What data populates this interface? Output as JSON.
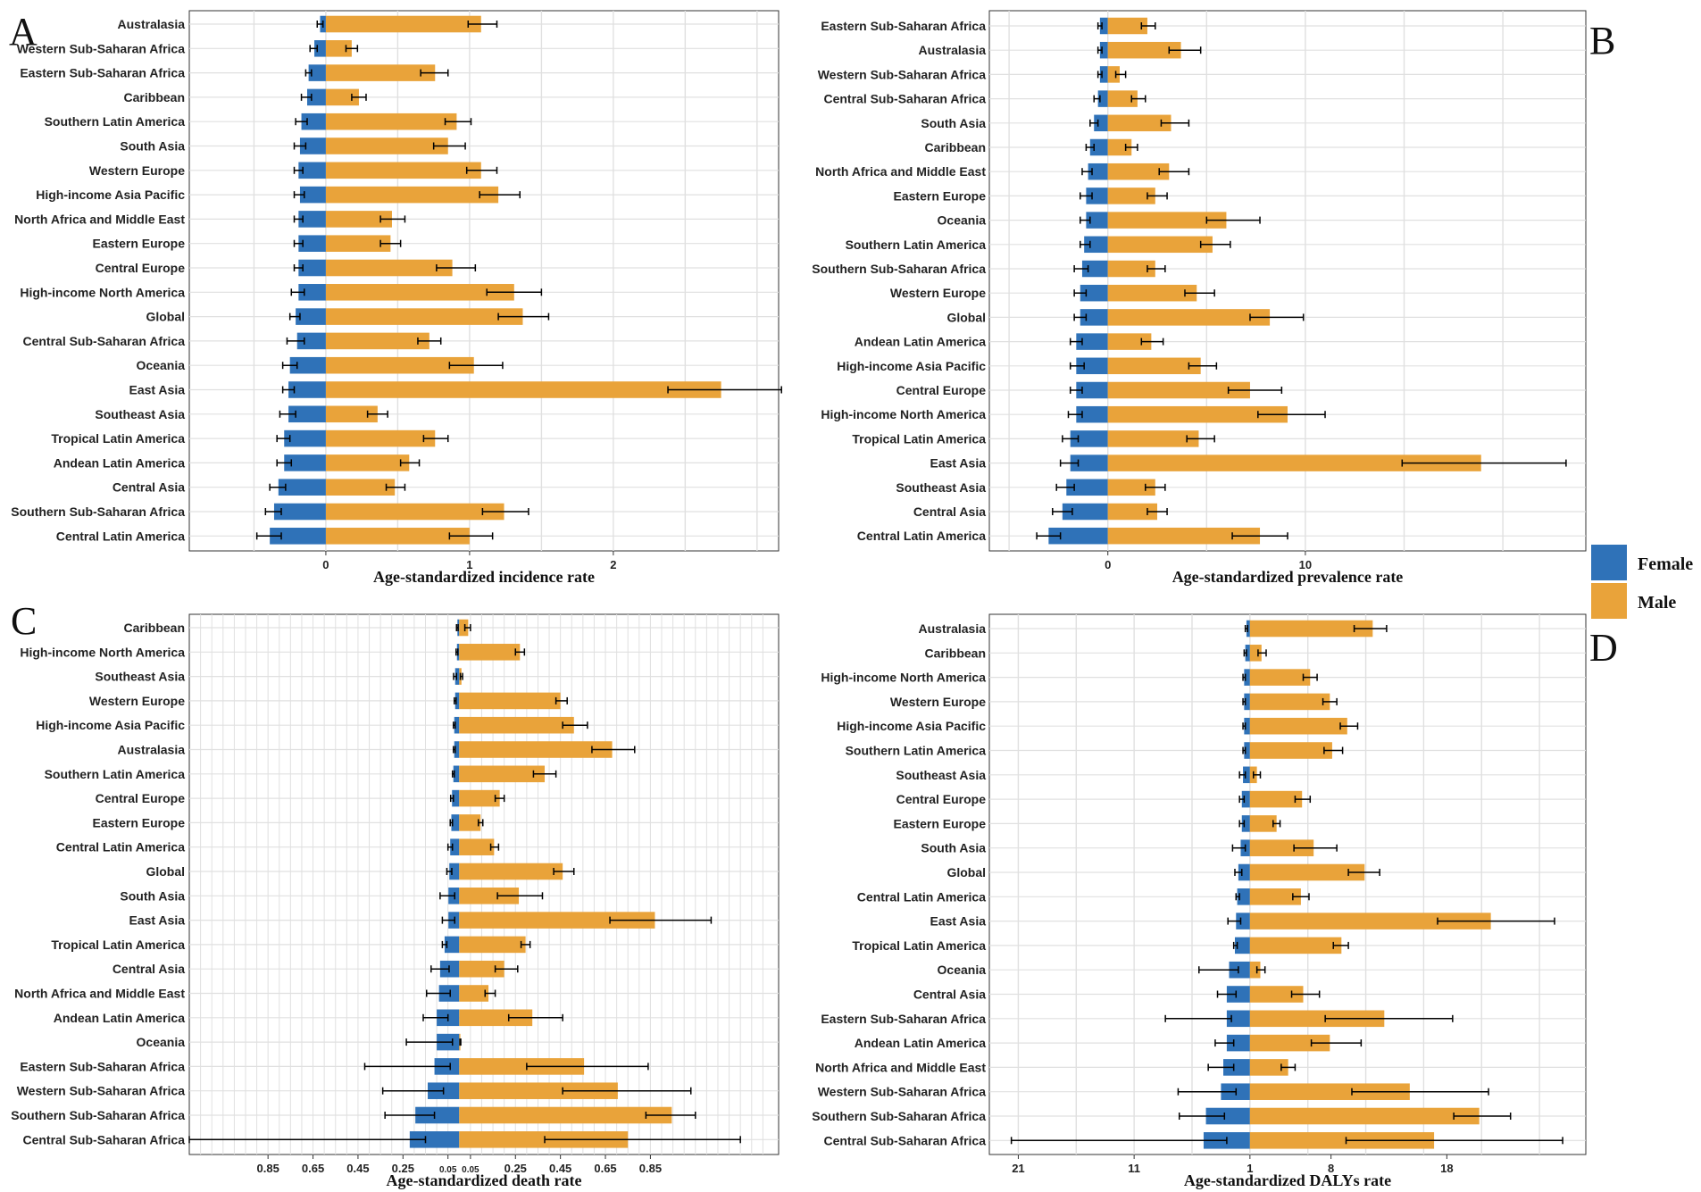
{
  "colors": {
    "female": "#2f72b8",
    "male": "#e9a33a",
    "grid": "#e0e0e0",
    "axis": "#333333"
  },
  "legend": {
    "female": "Female",
    "male": "Male"
  },
  "chart_data": [
    {
      "type": "bar",
      "panel": "A",
      "xlabel": "Age-standardized incidence rate",
      "tick_labels": [
        "0",
        "1",
        "2"
      ],
      "xlim": [
        -0.95,
        3.15
      ],
      "categories": [
        "Australasia",
        "Western Sub-Saharan Africa",
        "Eastern Sub-Saharan Africa",
        "Caribbean",
        "Southern Latin America",
        "South Asia",
        "Western Europe",
        "High-income Asia Pacific",
        "North Africa and Middle East",
        "Eastern Europe",
        "Central Europe",
        "High-income North America",
        "Global",
        "Central Sub-Saharan Africa",
        "Oceania",
        "East Asia",
        "Southeast Asia",
        "Tropical Latin America",
        "Andean Latin America",
        "Central Asia",
        "Southern Sub-Saharan Africa",
        "Central Latin America"
      ],
      "series": [
        {
          "name": "Female",
          "values": [
            0.04,
            0.08,
            0.12,
            0.13,
            0.17,
            0.18,
            0.19,
            0.18,
            0.19,
            0.19,
            0.19,
            0.19,
            0.21,
            0.2,
            0.25,
            0.26,
            0.26,
            0.29,
            0.29,
            0.33,
            0.36,
            0.39
          ],
          "err_low": [
            0.06,
            0.11,
            0.14,
            0.17,
            0.21,
            0.22,
            0.22,
            0.22,
            0.22,
            0.22,
            0.22,
            0.24,
            0.25,
            0.27,
            0.3,
            0.3,
            0.32,
            0.34,
            0.34,
            0.39,
            0.42,
            0.48
          ],
          "err_high": [
            0.02,
            0.06,
            0.1,
            0.1,
            0.13,
            0.14,
            0.16,
            0.15,
            0.16,
            0.16,
            0.16,
            0.15,
            0.18,
            0.15,
            0.2,
            0.22,
            0.21,
            0.25,
            0.24,
            0.28,
            0.31,
            0.31
          ]
        },
        {
          "name": "Male",
          "values": [
            1.08,
            0.18,
            0.76,
            0.23,
            0.91,
            0.85,
            1.08,
            1.2,
            0.46,
            0.45,
            0.88,
            1.31,
            1.37,
            0.72,
            1.03,
            2.75,
            0.36,
            0.76,
            0.58,
            0.48,
            1.24,
            1.0
          ],
          "err_low": [
            0.99,
            0.14,
            0.66,
            0.18,
            0.83,
            0.75,
            0.98,
            1.07,
            0.38,
            0.38,
            0.77,
            1.12,
            1.2,
            0.64,
            0.86,
            2.38,
            0.29,
            0.68,
            0.52,
            0.42,
            1.09,
            0.86
          ],
          "err_high": [
            1.19,
            0.22,
            0.85,
            0.28,
            1.01,
            0.97,
            1.19,
            1.35,
            0.55,
            0.52,
            1.04,
            1.5,
            1.55,
            0.8,
            1.23,
            3.17,
            0.43,
            0.85,
            0.65,
            0.55,
            1.41,
            1.16
          ]
        }
      ]
    },
    {
      "type": "bar",
      "panel": "B",
      "xlabel": "Age-standardized prevalence rate",
      "tick_labels": [
        "0",
        "10"
      ],
      "xlim": [
        -6,
        24.2
      ],
      "categories": [
        "Eastern Sub-Saharan Africa",
        "Australasia",
        "Western Sub-Saharan Africa",
        "Central Sub-Saharan Africa",
        "South Asia",
        "Caribbean",
        "North Africa and Middle East",
        "Eastern Europe",
        "Oceania",
        "Southern Latin America",
        "Southern Sub-Saharan Africa",
        "Western Europe",
        "Global",
        "Andean Latin America",
        "High-income Asia Pacific",
        "Central Europe",
        "High-income North America",
        "Tropical Latin America",
        "East Asia",
        "Southeast Asia",
        "Central Asia",
        "Central Latin America"
      ],
      "series": [
        {
          "name": "Female",
          "values": [
            0.4,
            0.4,
            0.4,
            0.5,
            0.7,
            0.9,
            1.0,
            1.1,
            1.1,
            1.2,
            1.3,
            1.4,
            1.4,
            1.6,
            1.6,
            1.6,
            1.6,
            1.9,
            1.9,
            2.1,
            2.3,
            3.0
          ],
          "err_low": [
            0.5,
            0.5,
            0.5,
            0.7,
            0.9,
            1.1,
            1.3,
            1.4,
            1.4,
            1.4,
            1.7,
            1.7,
            1.7,
            1.9,
            1.9,
            1.9,
            2.0,
            2.3,
            2.4,
            2.6,
            2.8,
            3.6
          ],
          "err_high": [
            0.3,
            0.3,
            0.3,
            0.4,
            0.5,
            0.7,
            0.8,
            0.8,
            0.9,
            0.9,
            1.0,
            1.1,
            1.1,
            1.3,
            1.2,
            1.3,
            1.3,
            1.5,
            1.5,
            1.7,
            1.8,
            2.4
          ]
        },
        {
          "name": "Male",
          "values": [
            2.0,
            3.7,
            0.6,
            1.5,
            3.2,
            1.2,
            3.1,
            2.4,
            6.0,
            5.3,
            2.4,
            4.5,
            8.2,
            2.2,
            4.7,
            7.2,
            9.1,
            4.6,
            18.9,
            2.4,
            2.5,
            7.7
          ],
          "err_low": [
            1.7,
            3.1,
            0.4,
            1.2,
            2.7,
            0.9,
            2.6,
            2.0,
            5.0,
            4.7,
            2.0,
            3.9,
            7.2,
            1.7,
            4.1,
            6.1,
            7.6,
            4.0,
            14.9,
            1.9,
            2.0,
            6.3
          ],
          "err_high": [
            2.4,
            4.7,
            0.9,
            1.9,
            4.1,
            1.5,
            4.1,
            3.0,
            7.7,
            6.2,
            2.9,
            5.4,
            9.9,
            2.8,
            5.5,
            8.8,
            11.0,
            5.4,
            23.2,
            2.9,
            3.0,
            9.1
          ]
        }
      ]
    },
    {
      "type": "bar",
      "panel": "C",
      "xlabel": "Age-standardized death rate",
      "tick_labels": [
        "0.85",
        "0.65",
        "0.45",
        "0.25",
        "0.05",
        "0.05",
        "0.25",
        "0.45",
        "0.65",
        "0.85"
      ],
      "xlim": [
        -1.2,
        1.42
      ],
      "categories": [
        "Caribbean",
        "High-income North America",
        "Southeast Asia",
        "Western Europe",
        "High-income Asia Pacific",
        "Australasia",
        "Southern Latin America",
        "Central Europe",
        "Eastern Europe",
        "Central Latin America",
        "Global",
        "South Asia",
        "East Asia",
        "Tropical Latin America",
        "Central Asia",
        "North Africa and Middle East",
        "Andean Latin America",
        "Oceania",
        "Eastern Sub-Saharan Africa",
        "Western Sub-Saharan Africa",
        "Southern Sub-Saharan Africa",
        "Central Sub-Saharan Africa"
      ],
      "series": [
        {
          "name": "Female",
          "values": [
            0.008,
            0.01,
            0.018,
            0.018,
            0.022,
            0.022,
            0.026,
            0.032,
            0.035,
            0.04,
            0.044,
            0.048,
            0.048,
            0.065,
            0.085,
            0.09,
            0.1,
            0.1,
            0.11,
            0.14,
            0.195,
            0.22
          ],
          "err_low": [
            0.012,
            0.014,
            0.025,
            0.022,
            0.026,
            0.026,
            0.03,
            0.038,
            0.04,
            0.05,
            0.055,
            0.085,
            0.075,
            0.075,
            0.125,
            0.145,
            0.16,
            0.235,
            0.42,
            0.34,
            0.33,
            1.2
          ],
          "err_high": [
            0.005,
            0.006,
            0.012,
            0.014,
            0.018,
            0.018,
            0.022,
            0.026,
            0.03,
            0.03,
            0.033,
            0.02,
            0.02,
            0.055,
            0.045,
            0.04,
            0.05,
            0.03,
            0.04,
            0.07,
            0.11,
            0.15
          ]
        },
        {
          "name": "Male",
          "values": [
            0.04,
            0.27,
            0.01,
            0.45,
            0.51,
            0.68,
            0.38,
            0.18,
            0.095,
            0.155,
            0.46,
            0.265,
            0.87,
            0.295,
            0.2,
            0.13,
            0.325,
            0.005,
            0.555,
            0.705,
            0.945,
            0.75
          ],
          "err_low": [
            0.025,
            0.25,
            0.005,
            0.43,
            0.46,
            0.59,
            0.33,
            0.16,
            0.085,
            0.14,
            0.42,
            0.17,
            0.67,
            0.275,
            0.16,
            0.115,
            0.22,
            0.003,
            0.3,
            0.46,
            0.83,
            0.38
          ],
          "err_high": [
            0.05,
            0.29,
            0.015,
            0.48,
            0.57,
            0.78,
            0.43,
            0.2,
            0.105,
            0.175,
            0.51,
            0.37,
            1.12,
            0.315,
            0.26,
            0.16,
            0.46,
            0.007,
            0.84,
            1.03,
            1.05,
            1.25
          ]
        }
      ]
    },
    {
      "type": "bar",
      "panel": "D",
      "xlabel": "Age-standardized DALYs rate",
      "tick_labels": [
        "21",
        "11",
        "1",
        "8",
        "18"
      ],
      "xlim": [
        -22.5,
        29
      ],
      "categories": [
        "Australasia",
        "Caribbean",
        "High-income North America",
        "Western Europe",
        "High-income Asia Pacific",
        "Southern Latin America",
        "Southeast Asia",
        "Central Europe",
        "Eastern Europe",
        "South Asia",
        "Global",
        "Central Latin America",
        "East Asia",
        "Tropical Latin America",
        "Oceania",
        "Central Asia",
        "Eastern Sub-Saharan Africa",
        "Andean Latin America",
        "North Africa and Middle East",
        "Western Sub-Saharan Africa",
        "Southern Sub-Saharan Africa",
        "Central Sub-Saharan Africa"
      ],
      "series": [
        {
          "name": "Female",
          "values": [
            0.3,
            0.4,
            0.5,
            0.5,
            0.5,
            0.5,
            0.6,
            0.7,
            0.7,
            0.8,
            1.0,
            1.1,
            1.2,
            1.3,
            1.8,
            2.0,
            2.0,
            2.0,
            2.3,
            2.5,
            3.8,
            4.0
          ],
          "err_low": [
            0.4,
            0.5,
            0.6,
            0.6,
            0.6,
            0.6,
            0.9,
            0.9,
            0.9,
            1.5,
            1.3,
            1.2,
            1.9,
            1.4,
            4.4,
            2.8,
            7.3,
            3.0,
            3.6,
            6.2,
            6.1,
            20.6
          ],
          "err_high": [
            0.2,
            0.3,
            0.4,
            0.4,
            0.4,
            0.4,
            0.4,
            0.5,
            0.5,
            0.4,
            0.7,
            0.9,
            0.8,
            1.1,
            1.0,
            1.2,
            1.6,
            1.4,
            1.4,
            1.2,
            2.2,
            2.0
          ]
        },
        {
          "name": "Male",
          "values": [
            10.6,
            1.0,
            5.2,
            6.9,
            8.4,
            7.1,
            0.6,
            4.5,
            2.3,
            5.5,
            9.9,
            4.4,
            20.8,
            7.9,
            0.9,
            4.6,
            11.6,
            6.9,
            3.3,
            13.8,
            19.8,
            15.9
          ],
          "err_low": [
            9.0,
            0.7,
            4.6,
            6.3,
            7.8,
            6.4,
            0.3,
            3.9,
            2.0,
            3.8,
            8.5,
            3.7,
            16.2,
            7.2,
            0.6,
            3.6,
            6.5,
            5.3,
            2.7,
            8.8,
            17.6,
            8.3
          ],
          "err_high": [
            11.8,
            1.4,
            5.8,
            7.5,
            9.3,
            8.0,
            0.9,
            5.2,
            2.6,
            7.5,
            11.2,
            5.1,
            26.3,
            8.5,
            1.3,
            6.0,
            17.5,
            9.6,
            3.9,
            20.6,
            22.5,
            27.0
          ]
        }
      ]
    }
  ]
}
